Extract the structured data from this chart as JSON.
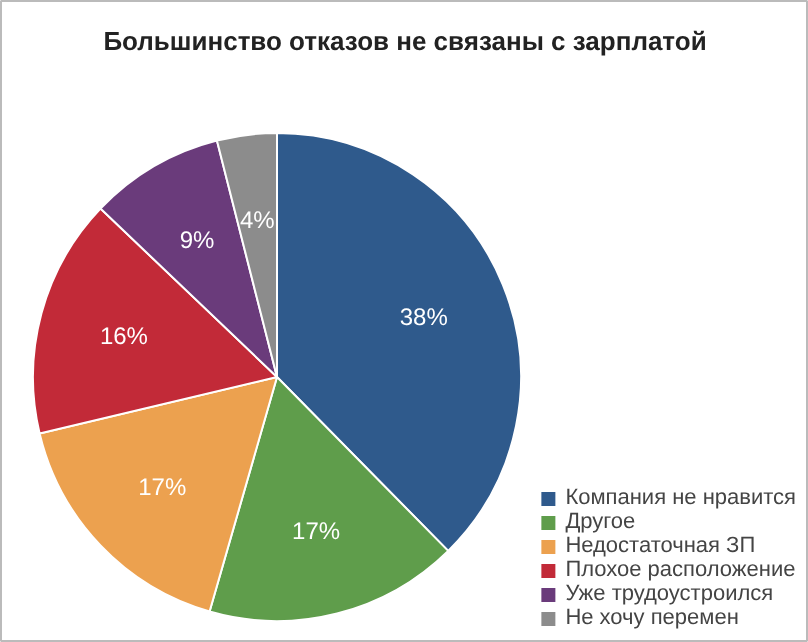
{
  "chart_data": {
    "type": "pie",
    "title": "Большинство отказов не связаны с зарплатой",
    "categories": [
      "Компания не нравится",
      "Другое",
      "Недостаточная ЗП",
      "Плохое расположение",
      "Уже трудоустроился",
      "Не хочу перемен"
    ],
    "values": [
      38,
      17,
      17,
      16,
      9,
      4
    ],
    "colors": [
      "#2f5a8c",
      "#5f9d4b",
      "#eca14f",
      "#c22a38",
      "#6a3b7b",
      "#8c8c8c"
    ],
    "value_labels": [
      "38%",
      "17%",
      "17%",
      "16%",
      "9%",
      "4%"
    ],
    "legend": "bottom right"
  }
}
